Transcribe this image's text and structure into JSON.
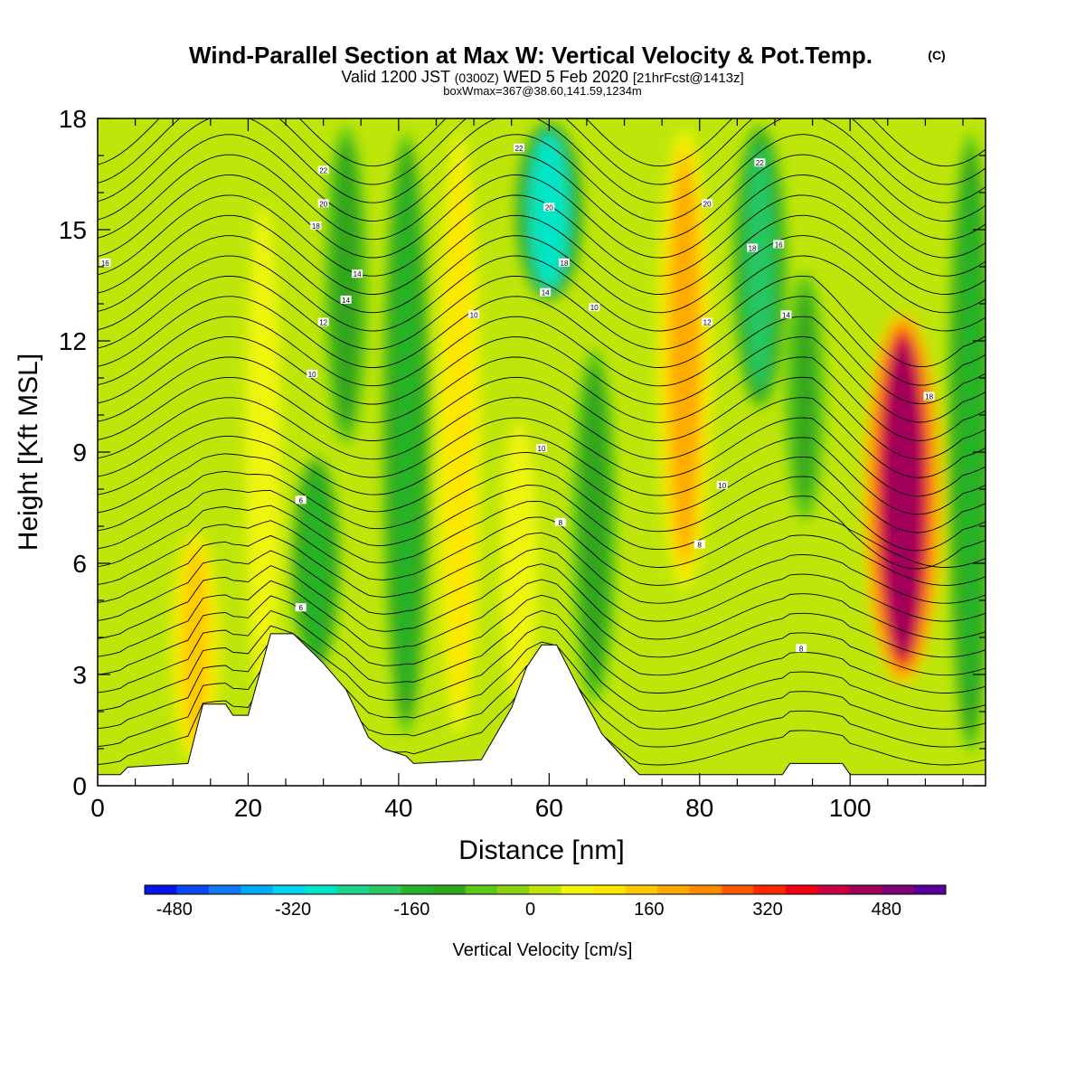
{
  "chart_data": {
    "type": "heatmap",
    "title": "Wind-Parallel Section at Max W: Vertical Velocity & Pot.Temp.",
    "title_mark": "(C)",
    "subtitle": {
      "prefix": "Valid 1200 JST",
      "utc": "(0300Z)",
      "date": "WED 5 Feb 2020",
      "forecast": "[21hrFcst@1413z]"
    },
    "box_info": "boxWmax=367@38.60,141.59,1234m",
    "xlabel": "Distance [nm]",
    "ylabel": "Height [Kft MSL]",
    "xlim": [
      0,
      118
    ],
    "ylim": [
      0,
      18
    ],
    "x_ticks": [
      "0",
      "20",
      "40",
      "60",
      "80",
      "100"
    ],
    "y_ticks": [
      "0",
      "3",
      "6",
      "9",
      "12",
      "15",
      "18"
    ],
    "colorbar": {
      "label": "Vertical Velocity [cm/s]",
      "ticks": [
        "-480",
        "-320",
        "-160",
        "0",
        "160",
        "320",
        "480"
      ],
      "range": [
        -520,
        560
      ],
      "levels": 22,
      "colors": [
        "#0a14e6",
        "#0a46f0",
        "#1478f5",
        "#00aaf5",
        "#00d2f0",
        "#00e6c8",
        "#1ed28c",
        "#28c864",
        "#28b428",
        "#32a51e",
        "#5ac814",
        "#8cd214",
        "#bee60a",
        "#f0f50a",
        "#ffe600",
        "#ffc800",
        "#ffaa00",
        "#ff8c00",
        "#ff5a00",
        "#ff2800",
        "#f00014",
        "#c80041",
        "#a0005a",
        "#820078",
        "#5a0096"
      ]
    },
    "updrafts": [
      {
        "x": 13,
        "from": 0.5,
        "to": 7,
        "w": 150
      },
      {
        "x": 22,
        "from": 2,
        "to": 16,
        "w": 70
      },
      {
        "x": 48,
        "from": 1,
        "to": 18,
        "w": 120
      },
      {
        "x": 56,
        "from": 2,
        "to": 10,
        "w": 80
      },
      {
        "x": 78,
        "from": 5,
        "to": 18,
        "w": 200
      },
      {
        "x": 107,
        "from": 2.5,
        "to": 13,
        "w": 470
      }
    ],
    "downdrafts": [
      {
        "x": 29,
        "from": 3,
        "to": 9,
        "w": -160
      },
      {
        "x": 33,
        "from": 9,
        "to": 18,
        "w": -120
      },
      {
        "x": 41,
        "from": 1,
        "to": 18,
        "w": -150
      },
      {
        "x": 60,
        "from": 13,
        "to": 18,
        "w": -280
      },
      {
        "x": 66,
        "from": 2,
        "to": 12,
        "w": -130
      },
      {
        "x": 88,
        "from": 10,
        "to": 18,
        "w": -200
      },
      {
        "x": 94,
        "from": 7,
        "to": 14,
        "w": -100
      },
      {
        "x": 116,
        "from": 0.5,
        "to": 18,
        "w": -140
      }
    ],
    "terrain_kft": [
      {
        "x": 0,
        "h": 0.3
      },
      {
        "x": 3,
        "h": 0.3
      },
      {
        "x": 4,
        "h": 0.5
      },
      {
        "x": 12,
        "h": 0.6
      },
      {
        "x": 14,
        "h": 2.2
      },
      {
        "x": 17,
        "h": 2.2
      },
      {
        "x": 18,
        "h": 1.9
      },
      {
        "x": 20,
        "h": 1.9
      },
      {
        "x": 23,
        "h": 4.1
      },
      {
        "x": 26,
        "h": 4.1
      },
      {
        "x": 30,
        "h": 3.3
      },
      {
        "x": 33,
        "h": 2.6
      },
      {
        "x": 36,
        "h": 1.3
      },
      {
        "x": 38,
        "h": 1.0
      },
      {
        "x": 41,
        "h": 0.8
      },
      {
        "x": 42,
        "h": 0.6
      },
      {
        "x": 51,
        "h": 0.7
      },
      {
        "x": 55,
        "h": 2.1
      },
      {
        "x": 57,
        "h": 3.2
      },
      {
        "x": 59,
        "h": 3.8
      },
      {
        "x": 61,
        "h": 3.8
      },
      {
        "x": 64,
        "h": 2.6
      },
      {
        "x": 67,
        "h": 1.4
      },
      {
        "x": 71,
        "h": 0.5
      },
      {
        "x": 72,
        "h": 0.3
      },
      {
        "x": 91,
        "h": 0.3
      },
      {
        "x": 92,
        "h": 0.6
      },
      {
        "x": 99,
        "h": 0.6
      },
      {
        "x": 100,
        "h": 0.3
      },
      {
        "x": 118,
        "h": 0.3
      }
    ],
    "contour_labels": [
      {
        "text": "16",
        "x": 1,
        "y": 14.1
      },
      {
        "text": "22",
        "x": 30,
        "y": 16.6
      },
      {
        "text": "20",
        "x": 30,
        "y": 15.7
      },
      {
        "text": "18",
        "x": 29,
        "y": 15.1
      },
      {
        "text": "14",
        "x": 34.5,
        "y": 13.8
      },
      {
        "text": "14",
        "x": 33,
        "y": 13.1
      },
      {
        "text": "12",
        "x": 30,
        "y": 12.5
      },
      {
        "text": "10",
        "x": 28.5,
        "y": 11.1
      },
      {
        "text": "6",
        "x": 27,
        "y": 7.7
      },
      {
        "text": "6",
        "x": 27,
        "y": 4.8
      },
      {
        "text": "22",
        "x": 56,
        "y": 17.2
      },
      {
        "text": "20",
        "x": 60,
        "y": 15.6
      },
      {
        "text": "18",
        "x": 62,
        "y": 14.1
      },
      {
        "text": "14",
        "x": 59.5,
        "y": 13.3
      },
      {
        "text": "10",
        "x": 50,
        "y": 12.7
      },
      {
        "text": "10",
        "x": 66,
        "y": 12.9
      },
      {
        "text": "10",
        "x": 59,
        "y": 9.1
      },
      {
        "text": "8",
        "x": 61.5,
        "y": 7.1
      },
      {
        "text": "20",
        "x": 81,
        "y": 15.7
      },
      {
        "text": "12",
        "x": 81,
        "y": 12.5
      },
      {
        "text": "10",
        "x": 83,
        "y": 8.1
      },
      {
        "text": "8",
        "x": 80,
        "y": 6.5
      },
      {
        "text": "22",
        "x": 88,
        "y": 16.8
      },
      {
        "text": "18",
        "x": 87,
        "y": 14.5
      },
      {
        "text": "16",
        "x": 90.5,
        "y": 14.6
      },
      {
        "text": "14",
        "x": 91.5,
        "y": 12.7
      },
      {
        "text": "8",
        "x": 93.5,
        "y": 3.7
      },
      {
        "text": "18",
        "x": 110.5,
        "y": 10.5
      }
    ]
  }
}
